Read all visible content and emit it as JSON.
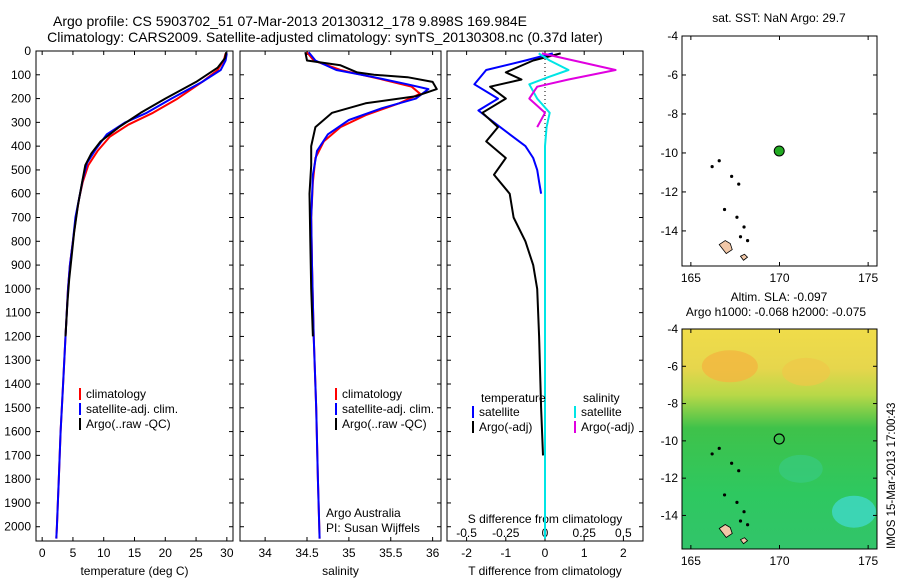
{
  "header": {
    "line1": "Argo profile: CS 5903702_51 07-Mar-2013 20130312_178 9.898S 169.984E",
    "line2": "Climatology: CARS2009. Satellite-adjusted climatology: synTS_20130308.nc (0.37d later)"
  },
  "colors": {
    "climatology": "#ff0000",
    "satellite": "#0000ff",
    "argo": "#000000",
    "sal_satellite": "#00e5e5",
    "sal_argo": "#e000e0",
    "float_marker": "#22aa22"
  },
  "chart_data": [
    {
      "type": "line",
      "name": "temperature",
      "xlabel": "temperature (deg C)",
      "ylabel": "",
      "xticks": [
        0,
        5,
        10,
        15,
        20,
        25,
        30
      ],
      "xlim": [
        -1,
        31
      ],
      "yticks": [
        0,
        100,
        200,
        300,
        400,
        500,
        600,
        700,
        800,
        900,
        1000,
        1100,
        1200,
        1300,
        1400,
        1500,
        1600,
        1700,
        1800,
        1900,
        2000
      ],
      "ylim": [
        0,
        2060
      ],
      "y_reversed": true,
      "legend": [
        "climatology",
        "satellite-adj. clim.",
        "Argo(..raw -QC)"
      ],
      "series": [
        {
          "name": "climatology",
          "color": "#ff0000",
          "points": [
            [
              29.8,
              10
            ],
            [
              29.5,
              40
            ],
            [
              28.5,
              80
            ],
            [
              26,
              130
            ],
            [
              22,
              200
            ],
            [
              18,
              260
            ],
            [
              14,
              310
            ],
            [
              11,
              360
            ],
            [
              9,
              420
            ],
            [
              7.5,
              480
            ],
            [
              6.6,
              550
            ],
            [
              6,
              620
            ],
            [
              5.5,
              700
            ],
            [
              5,
              800
            ],
            [
              4.5,
              900
            ],
            [
              4.2,
              1000
            ],
            [
              3.8,
              1200
            ],
            [
              3.4,
              1400
            ],
            [
              3.0,
              1600
            ],
            [
              2.7,
              1800
            ],
            [
              2.4,
              2000
            ],
            [
              2.3,
              2050
            ]
          ]
        },
        {
          "name": "satellite-adj. clim.",
          "color": "#0000ff",
          "points": [
            [
              30,
              10
            ],
            [
              29.8,
              40
            ],
            [
              29,
              80
            ],
            [
              26,
              130
            ],
            [
              21,
              200
            ],
            [
              17,
              260
            ],
            [
              13.5,
              300
            ],
            [
              10.5,
              350
            ],
            [
              8.8,
              410
            ],
            [
              7.3,
              470
            ],
            [
              6.6,
              540
            ],
            [
              6,
              620
            ],
            [
              5.4,
              700
            ],
            [
              5,
              800
            ],
            [
              4.5,
              900
            ],
            [
              4.2,
              1000
            ],
            [
              3.8,
              1200
            ],
            [
              3.4,
              1400
            ],
            [
              3.0,
              1600
            ],
            [
              2.7,
              1800
            ],
            [
              2.4,
              2000
            ],
            [
              2.3,
              2050
            ]
          ]
        },
        {
          "name": "Argo(..raw -QC)",
          "color": "#000000",
          "points": [
            [
              29.9,
              5
            ],
            [
              29.7,
              30
            ],
            [
              28.5,
              70
            ],
            [
              25,
              130
            ],
            [
              20,
              200
            ],
            [
              16,
              260
            ],
            [
              12.5,
              320
            ],
            [
              9.5,
              380
            ],
            [
              8,
              430
            ],
            [
              7,
              480
            ],
            [
              6.5,
              550
            ],
            [
              5.8,
              650
            ],
            [
              5.2,
              760
            ],
            [
              4.8,
              860
            ],
            [
              4.4,
              960
            ],
            [
              4.1,
              1060
            ],
            [
              3.8,
              1200
            ]
          ]
        }
      ]
    },
    {
      "type": "line",
      "name": "salinity",
      "xlabel": "salinity",
      "ylabel": "",
      "xticks": [
        34,
        34.5,
        35,
        35.5,
        36
      ],
      "xlim": [
        33.7,
        36.1
      ],
      "ylim": [
        0,
        2060
      ],
      "y_reversed": true,
      "legend": [
        "climatology",
        "satellite-adj. clim.",
        "Argo(..raw -QC)"
      ],
      "annotations": [
        "Argo Australia",
        "PI: Susan Wijffels"
      ],
      "series": [
        {
          "name": "climatology",
          "color": "#ff0000",
          "points": [
            [
              34.5,
              5
            ],
            [
              34.58,
              40
            ],
            [
              34.9,
              80
            ],
            [
              35.4,
              120
            ],
            [
              35.75,
              150
            ],
            [
              35.85,
              180
            ],
            [
              35.6,
              220
            ],
            [
              35.2,
              270
            ],
            [
              34.9,
              320
            ],
            [
              34.7,
              380
            ],
            [
              34.6,
              450
            ],
            [
              34.57,
              550
            ],
            [
              34.55,
              700
            ],
            [
              34.56,
              900
            ],
            [
              34.58,
              1200
            ],
            [
              34.61,
              1500
            ],
            [
              34.63,
              1800
            ],
            [
              34.65,
              2050
            ]
          ]
        },
        {
          "name": "satellite-adj. clim.",
          "color": "#0000ff",
          "points": [
            [
              34.52,
              5
            ],
            [
              34.6,
              40
            ],
            [
              34.85,
              80
            ],
            [
              35.3,
              110
            ],
            [
              35.7,
              140
            ],
            [
              35.95,
              160
            ],
            [
              35.8,
              200
            ],
            [
              35.4,
              240
            ],
            [
              35.0,
              290
            ],
            [
              34.75,
              350
            ],
            [
              34.62,
              420
            ],
            [
              34.57,
              520
            ],
            [
              34.55,
              700
            ],
            [
              34.56,
              900
            ],
            [
              34.58,
              1200
            ],
            [
              34.61,
              1500
            ],
            [
              34.63,
              1800
            ],
            [
              34.65,
              2050
            ]
          ]
        },
        {
          "name": "Argo(..raw -QC)",
          "color": "#000000",
          "points": [
            [
              34.48,
              5
            ],
            [
              34.5,
              40
            ],
            [
              34.9,
              60
            ],
            [
              35.1,
              90
            ],
            [
              35.3,
              100
            ],
            [
              35.7,
              110
            ],
            [
              36.0,
              130
            ],
            [
              36.05,
              160
            ],
            [
              35.8,
              190
            ],
            [
              35.2,
              220
            ],
            [
              34.8,
              260
            ],
            [
              34.6,
              320
            ],
            [
              34.55,
              400
            ],
            [
              34.55,
              480
            ],
            [
              34.53,
              600
            ],
            [
              34.54,
              800
            ],
            [
              34.55,
              1000
            ],
            [
              34.57,
              1200
            ]
          ]
        }
      ]
    },
    {
      "type": "line",
      "name": "difference",
      "xlabel": "T difference from climatology",
      "xlabel_top": "S difference from climatology",
      "xticks": [
        -2,
        -1,
        0,
        1,
        2
      ],
      "xlim": [
        -2.5,
        2.5
      ],
      "xticks_top": [
        "-0.5",
        "-0.25",
        "0",
        "0.25",
        "0.5"
      ],
      "ylim": [
        0,
        2060
      ],
      "y_reversed": true,
      "legend_titles": [
        "temperature",
        "salinity"
      ],
      "legend": [
        "satellite",
        "Argo(-adj)",
        "satellite",
        "Argo(-adj)"
      ],
      "series": [
        {
          "name": "temperature satellite",
          "color": "#0000ff",
          "points": [
            [
              0.2,
              10
            ],
            [
              -0.5,
              40
            ],
            [
              -1.5,
              80
            ],
            [
              -1.8,
              140
            ],
            [
              -1.2,
              200
            ],
            [
              -1.7,
              250
            ],
            [
              -1.3,
              300
            ],
            [
              -0.9,
              350
            ],
            [
              -0.5,
              400
            ],
            [
              -0.3,
              450
            ],
            [
              -0.2,
              500
            ],
            [
              -0.15,
              550
            ],
            [
              -0.1,
              600
            ]
          ]
        },
        {
          "name": "temperature Argo(-adj)",
          "color": "#000000",
          "points": [
            [
              0.4,
              10
            ],
            [
              -0.3,
              40
            ],
            [
              -1.0,
              90
            ],
            [
              -0.6,
              120
            ],
            [
              -1.4,
              150
            ],
            [
              -1.0,
              200
            ],
            [
              -1.6,
              260
            ],
            [
              -1.2,
              320
            ],
            [
              -1.5,
              380
            ],
            [
              -1.0,
              450
            ],
            [
              -1.3,
              520
            ],
            [
              -0.9,
              600
            ],
            [
              -0.8,
              700
            ],
            [
              -0.5,
              800
            ],
            [
              -0.3,
              900
            ],
            [
              -0.2,
              1000
            ],
            [
              -0.15,
              1200
            ],
            [
              -0.1,
              1500
            ],
            [
              -0.05,
              1700
            ]
          ]
        },
        {
          "name": "salinity satellite",
          "color": "#00e5e5",
          "points": [
            [
              -0.04,
              10
            ],
            [
              0.03,
              40
            ],
            [
              0.15,
              80
            ],
            [
              0.02,
              110
            ],
            [
              -0.1,
              140
            ],
            [
              -0.05,
              200
            ],
            [
              0.03,
              260
            ],
            [
              0.01,
              320
            ],
            [
              0,
              400
            ],
            [
              0,
              600
            ],
            [
              0,
              1000
            ],
            [
              0,
              2050
            ]
          ]
        },
        {
          "name": "salinity Argo(-adj)",
          "color": "#e000e0",
          "points": [
            [
              -0.02,
              10
            ],
            [
              0.25,
              50
            ],
            [
              0.45,
              80
            ],
            [
              0.15,
              120
            ],
            [
              -0.05,
              150
            ],
            [
              -0.1,
              200
            ],
            [
              0.0,
              260
            ],
            [
              -0.05,
              320
            ]
          ]
        }
      ]
    },
    {
      "type": "scatter",
      "name": "sst-map",
      "title": "sat. SST: NaN Argo: 29.7",
      "xticks": [
        165,
        170,
        175
      ],
      "yticks": [
        -4,
        -6,
        -8,
        -10,
        -12,
        -14
      ],
      "xlim": [
        164.5,
        175.5
      ],
      "ylim": [
        -15.8,
        -4
      ],
      "float_position": [
        169.984,
        -9.898
      ]
    },
    {
      "type": "heatmap",
      "name": "sla-map",
      "title": "Altim. SLA: -0.097",
      "subtitle": "Argo h1000: -0.068 h2000: -0.075",
      "xticks": [
        165,
        170,
        175
      ],
      "yticks": [
        -4,
        -6,
        -8,
        -10,
        -12,
        -14
      ],
      "xlim": [
        164.5,
        175.5
      ],
      "ylim": [
        -15.8,
        -4
      ],
      "float_position": [
        169.984,
        -9.898
      ]
    }
  ],
  "stamp": "IMOS 15-Mar-2013 17:00:43"
}
